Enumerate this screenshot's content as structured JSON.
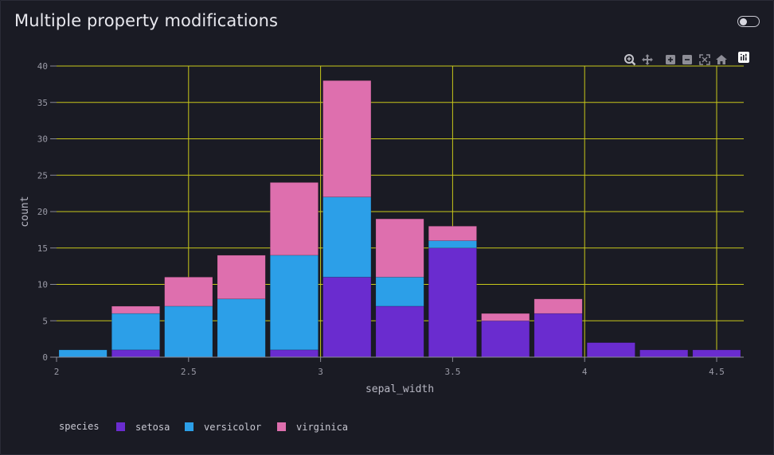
{
  "title": "Multiple property modifications",
  "toggle": {
    "state": "off"
  },
  "modebar": {
    "icons": [
      "zoom-icon",
      "pan-icon",
      "zoom-in-icon",
      "zoom-out-icon",
      "autoscale-icon",
      "reset-axes-icon",
      "plotly-logo-icon"
    ]
  },
  "chart_data": {
    "type": "bar",
    "stacked": true,
    "xlabel": "sepal_width",
    "ylabel": "count",
    "xlim": [
      2.0,
      4.6
    ],
    "ylim": [
      0,
      40
    ],
    "x_ticks": [
      "2",
      "2.5",
      "3",
      "3.5",
      "4",
      "4.5"
    ],
    "y_ticks": [
      "0",
      "5",
      "10",
      "15",
      "20",
      "25",
      "30",
      "35",
      "40"
    ],
    "bin_starts": [
      2.0,
      2.2,
      2.4,
      2.6,
      2.8,
      3.0,
      3.2,
      3.4,
      3.6,
      3.8,
      4.0,
      4.2,
      4.4
    ],
    "bin_width": 0.2,
    "series": [
      {
        "name": "setosa",
        "color": "#6a2ccf",
        "values": [
          0,
          1,
          0,
          0,
          1,
          11,
          7,
          15,
          5,
          6,
          2,
          1,
          1
        ]
      },
      {
        "name": "versicolor",
        "color": "#2c9fe8",
        "values": [
          1,
          5,
          7,
          8,
          13,
          11,
          4,
          1,
          0,
          0,
          0,
          0,
          0
        ]
      },
      {
        "name": "virginica",
        "color": "#de6fae",
        "values": [
          0,
          1,
          4,
          6,
          10,
          16,
          8,
          2,
          1,
          2,
          0,
          0,
          0
        ]
      }
    ],
    "legend": {
      "title": "species",
      "placement": "bottom-left",
      "items": [
        "setosa",
        "versicolor",
        "virginica"
      ]
    },
    "grid": true,
    "grid_color": "#c8c81a",
    "background": "#1a1b24"
  }
}
